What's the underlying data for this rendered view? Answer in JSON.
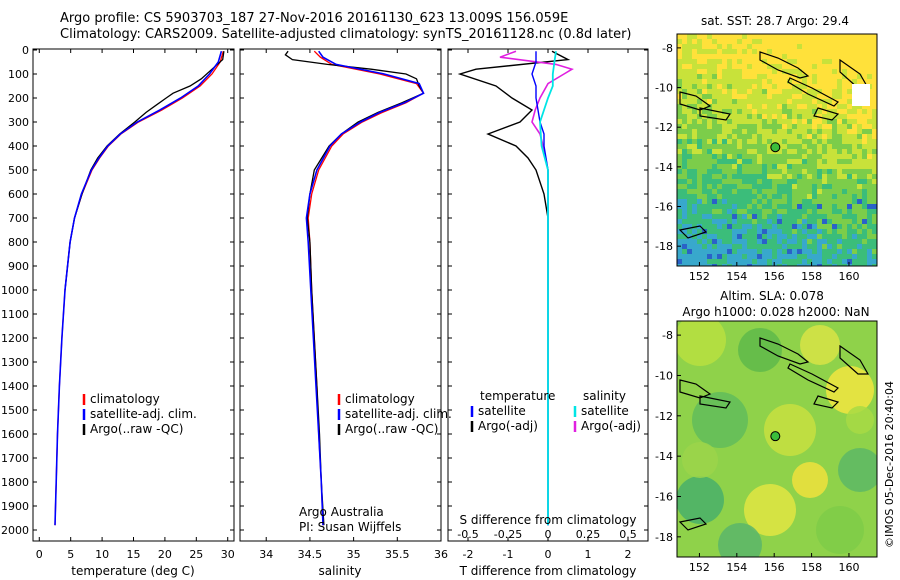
{
  "header": {
    "line1": "Argo profile: CS 5903703_187 27-Nov-2016 20161130_623 13.009S 156.059E",
    "line2": "Climatology: CARS2009. Satellite-adjusted climatology: synTS_20161128.nc (0.8d later)"
  },
  "colors": {
    "climatology": "#ff0000",
    "satellite": "#0000ff",
    "argo": "#000000",
    "sat_salinity": "#00e5e5",
    "argo_salinity": "#e020e0"
  },
  "chart_data": [
    {
      "type": "line",
      "name": "temperature",
      "xlabel": "temperature (deg C)",
      "ylabel": "",
      "xlim": [
        -1,
        31
      ],
      "ylim": [
        2050,
        0
      ],
      "xticks": [
        "0",
        "5",
        "10",
        "15",
        "20",
        "25",
        "30"
      ],
      "yticks": [
        "0",
        "100",
        "200",
        "300",
        "400",
        "500",
        "600",
        "700",
        "800",
        "900",
        "1000",
        "1100",
        "1200",
        "1300",
        "1400",
        "1500",
        "1600",
        "1700",
        "1800",
        "1900",
        "2000"
      ],
      "legend": [
        "climatology",
        "satellite-adj. clim.",
        "Argo(..raw -QC)"
      ],
      "series": [
        {
          "name": "climatology",
          "depth": [
            5,
            50,
            100,
            150,
            200,
            250,
            300,
            350,
            400,
            450,
            500,
            600,
            700,
            800,
            1000,
            1200,
            1400,
            1600,
            1800,
            1980
          ],
          "values": [
            29.3,
            28.8,
            27.5,
            25.6,
            22.8,
            19.5,
            15.8,
            13.0,
            11.0,
            9.6,
            8.4,
            6.8,
            5.6,
            4.9,
            4.1,
            3.6,
            3.2,
            2.9,
            2.7,
            2.5
          ]
        },
        {
          "name": "satellite-adj. clim.",
          "depth": [
            5,
            50,
            100,
            150,
            200,
            250,
            300,
            350,
            400,
            450,
            500,
            600,
            700,
            800,
            1000,
            1200,
            1400,
            1600,
            1800,
            1980
          ],
          "values": [
            29.0,
            28.5,
            27.1,
            25.3,
            22.5,
            19.2,
            15.6,
            12.9,
            10.9,
            9.5,
            8.3,
            6.7,
            5.6,
            4.9,
            4.1,
            3.6,
            3.2,
            2.9,
            2.7,
            2.5
          ]
        },
        {
          "name": "Argo(..raw -QC)",
          "depth": [
            5,
            40,
            80,
            120,
            150,
            180,
            200,
            230,
            260,
            300,
            350,
            400,
            450,
            500,
            600,
            700,
            800,
            1000
          ],
          "values": [
            29.4,
            29.2,
            27.5,
            25.8,
            24.0,
            21.3,
            20.2,
            18.6,
            17.0,
            15.2,
            12.8,
            10.8,
            9.3,
            8.2,
            6.8,
            5.6,
            4.9,
            4.1
          ]
        }
      ],
      "annotations": []
    },
    {
      "type": "line",
      "name": "salinity",
      "xlabel": "salinity",
      "xlim": [
        33.7,
        36.0
      ],
      "ylim": [
        2050,
        0
      ],
      "xticks": [
        "34",
        "34.5",
        "35",
        "35.5",
        "36"
      ],
      "legend": [
        "climatology",
        "satellite-adj. clim.",
        "Argo(..raw -QC)"
      ],
      "series": [
        {
          "name": "climatology",
          "depth": [
            5,
            30,
            60,
            100,
            140,
            180,
            220,
            260,
            300,
            350,
            400,
            500,
            600,
            700,
            800,
            1000,
            1200,
            1400,
            1600,
            1800,
            1980
          ],
          "values": [
            34.55,
            34.62,
            34.75,
            35.3,
            35.72,
            35.8,
            35.6,
            35.33,
            35.1,
            34.88,
            34.75,
            34.6,
            34.52,
            34.48,
            34.5,
            34.52,
            34.55,
            34.58,
            34.6,
            34.63,
            34.65
          ]
        },
        {
          "name": "satellite-adj. clim.",
          "depth": [
            5,
            30,
            60,
            100,
            140,
            180,
            220,
            260,
            300,
            350,
            400,
            500,
            600,
            700,
            800,
            1000,
            1200,
            1400,
            1600,
            1800,
            1980
          ],
          "values": [
            34.6,
            34.65,
            34.8,
            35.35,
            35.75,
            35.8,
            35.58,
            35.3,
            35.08,
            34.86,
            34.73,
            34.58,
            34.5,
            34.46,
            34.48,
            34.51,
            34.54,
            34.57,
            34.6,
            34.63,
            34.65
          ]
        },
        {
          "name": "Argo(..raw -QC)",
          "depth": [
            5,
            20,
            40,
            60,
            80,
            100,
            120,
            150,
            180,
            220,
            260,
            300,
            350,
            400,
            500,
            600,
            700,
            800,
            1000,
            1200,
            1400,
            1600,
            1800,
            1980
          ],
          "values": [
            34.25,
            34.22,
            34.3,
            34.7,
            35.2,
            35.6,
            35.72,
            35.75,
            35.8,
            35.55,
            35.28,
            35.05,
            34.86,
            34.72,
            34.55,
            34.5,
            34.47,
            34.5,
            34.52,
            34.55,
            34.58,
            34.61,
            34.63,
            34.66
          ]
        }
      ],
      "annotations": [
        "Argo Australia",
        "PI: Susan Wijffels"
      ]
    },
    {
      "type": "line",
      "name": "difference",
      "xlabel": "T difference from climatology",
      "x2label": "S difference from climatology",
      "xlim": [
        -2.5,
        2.5
      ],
      "ylim": [
        2050,
        0
      ],
      "xticks": [
        "-2",
        "-1",
        "0",
        "1",
        "2"
      ],
      "x2ticks": [
        "-0.5",
        "-0.25",
        "0",
        "0.25",
        "0.5"
      ],
      "legend_temperature_title": "temperature",
      "legend_salinity_title": "salinity",
      "legend_items": [
        "satellite",
        "Argo(-adj)",
        "satellite",
        "Argo(-adj)"
      ],
      "series": [
        {
          "name": "T satellite",
          "depth": [
            5,
            50,
            100,
            150,
            200,
            250,
            300,
            350,
            400,
            500,
            700,
            1000,
            1500,
            1980
          ],
          "values": [
            -0.3,
            -0.3,
            -0.4,
            -0.3,
            -0.3,
            -0.25,
            -0.2,
            -0.1,
            -0.1,
            0,
            0,
            0,
            0,
            0
          ]
        },
        {
          "name": "T Argo(-adj)",
          "depth": [
            5,
            40,
            80,
            100,
            150,
            200,
            250,
            300,
            350,
            400,
            450,
            500,
            600,
            700,
            800,
            1000
          ],
          "values": [
            0.1,
            0.5,
            -1.8,
            -2.2,
            -1.3,
            -0.9,
            -0.4,
            -0.7,
            -1.5,
            -0.8,
            -0.5,
            -0.3,
            -0.1,
            0,
            0,
            0
          ]
        },
        {
          "name": "S satellite",
          "depth": [
            5,
            50,
            100,
            150,
            200,
            300,
            400,
            500,
            700,
            1000,
            1500,
            1980
          ],
          "values": [
            0.05,
            0.04,
            0.03,
            0.03,
            0.0,
            -0.05,
            -0.04,
            0.0,
            0,
            0,
            0,
            0
          ]
        },
        {
          "name": "S Argo(-adj)",
          "depth": [
            5,
            30,
            60,
            80,
            100,
            140,
            200,
            250,
            300,
            350,
            400,
            500,
            700,
            1000,
            1500,
            1980
          ],
          "values": [
            -0.2,
            -0.3,
            0.05,
            0.15,
            0.1,
            0.0,
            -0.05,
            -0.08,
            -0.1,
            -0.05,
            -0.03,
            0.0,
            0,
            0,
            0,
            0
          ]
        }
      ],
      "annotations": []
    },
    {
      "type": "heatmap",
      "name": "sst_map",
      "title": "sat. SST: 28.7 Argo: 29.4",
      "xticks": [
        "152",
        "154",
        "156",
        "158",
        "160"
      ],
      "yticks": [
        "-8",
        "-10",
        "-12",
        "-14",
        "-16",
        "-18"
      ],
      "xlim": [
        150.8,
        161.5
      ],
      "ylim": [
        -19,
        -7.3
      ],
      "argo_position": [
        156.06,
        -13.01
      ]
    },
    {
      "type": "heatmap",
      "name": "sla_map",
      "title": "Altim. SLA: 0.078",
      "subtitle": "Argo h1000: 0.028 h2000: NaN",
      "xticks": [
        "152",
        "154",
        "156",
        "158",
        "160"
      ],
      "yticks": [
        "-8",
        "-10",
        "-12",
        "-14",
        "-16",
        "-18"
      ],
      "xlim": [
        150.8,
        161.5
      ],
      "ylim": [
        -19,
        -7.3
      ],
      "argo_position": [
        156.06,
        -13.01
      ]
    }
  ],
  "credit": "©IMOS 05-Dec-2016 20:40:04"
}
